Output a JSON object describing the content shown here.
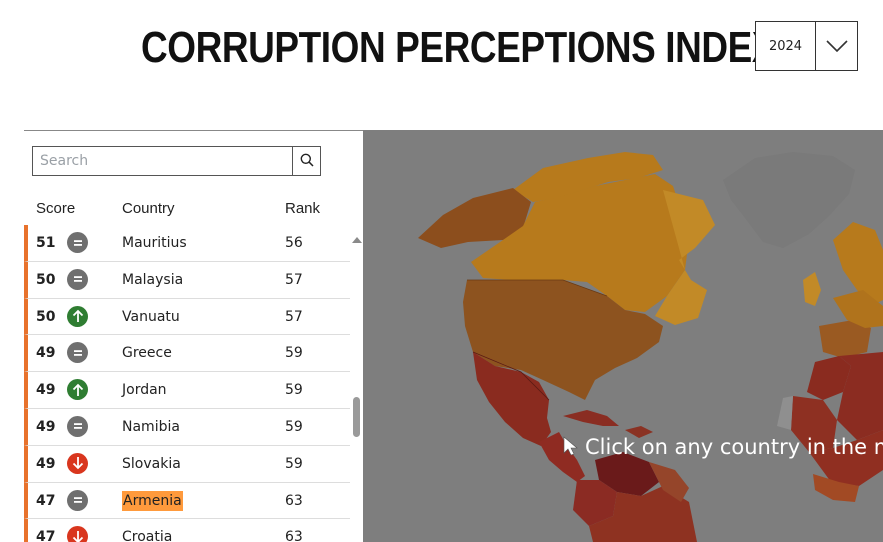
{
  "header": {
    "title": "CORRUPTION PERCEPTIONS INDEX",
    "year_value": "2024"
  },
  "search": {
    "placeholder": "Search"
  },
  "table": {
    "columns": {
      "score": "Score",
      "country": "Country",
      "rank": "Rank"
    },
    "rows": [
      {
        "score": "51",
        "trend": "unchanged",
        "country": "Mauritius",
        "rank": "56"
      },
      {
        "score": "50",
        "trend": "unchanged",
        "country": "Malaysia",
        "rank": "57"
      },
      {
        "score": "50",
        "trend": "up",
        "country": "Vanuatu",
        "rank": "57"
      },
      {
        "score": "49",
        "trend": "unchanged",
        "country": "Greece",
        "rank": "59"
      },
      {
        "score": "49",
        "trend": "up",
        "country": "Jordan",
        "rank": "59"
      },
      {
        "score": "49",
        "trend": "unchanged",
        "country": "Namibia",
        "rank": "59"
      },
      {
        "score": "49",
        "trend": "down",
        "country": "Slovakia",
        "rank": "59"
      },
      {
        "score": "47",
        "trend": "unchanged",
        "country": "Armenia",
        "rank": "63",
        "highlighted": true
      },
      {
        "score": "47",
        "trend": "down",
        "country": "Croatia",
        "rank": "63"
      }
    ]
  },
  "map": {
    "hint": "Click on any country in the ma"
  },
  "colors": {
    "accent_bar": "#e8722c",
    "trend_unchanged": "#6f6f6f",
    "trend_up": "#2f7d32",
    "trend_down": "#d9361e",
    "highlight": "#ff9a3c",
    "map_background": "#7e7e7e"
  },
  "icons": {
    "unchanged": "equals-icon",
    "up": "arrow-up-icon",
    "down": "arrow-down-icon",
    "search": "search-icon",
    "dropdown": "chevron-down-icon"
  }
}
